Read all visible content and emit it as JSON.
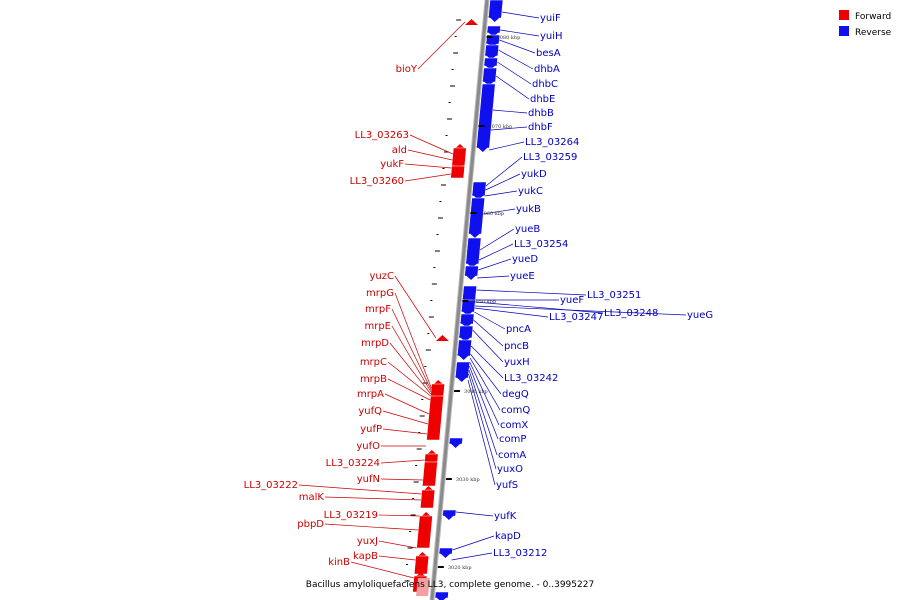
{
  "title": "Bacillus amyloliquefaciens LL3, complete genome. - 0..3995227",
  "legend": [
    {
      "label": "Forward",
      "color": "#ee0000"
    },
    {
      "label": "Reverse",
      "color": "#1010ee"
    }
  ],
  "colors": {
    "forward": "#ee0000",
    "reverse": "#1010ee",
    "forward_label": "#cc0000",
    "reverse_label": "#0000bb",
    "backbone": "#8a8a8a"
  },
  "coordinates": [
    "3080 kbp",
    "3070 kbp",
    "3060 kbp",
    "3050 kbp",
    "3040 kbp",
    "3030 kbp",
    "3020 kbp"
  ],
  "forward_genes": [
    "bioY",
    "LL3_03263",
    "ald",
    "yukF",
    "LL3_03260",
    "yuzC",
    "mrpG",
    "mrpF",
    "mrpE",
    "mrpD",
    "mrpC",
    "mrpB",
    "mrpA",
    "yufQ",
    "yufP",
    "yufO",
    "LL3_03224",
    "yufN",
    "LL3_03222",
    "malK",
    "LL3_03219",
    "pbpD",
    "yuxJ",
    "kapB",
    "kinB"
  ],
  "reverse_genes": [
    "yuiF",
    "yuiH",
    "besA",
    "dhbA",
    "dhbC",
    "dhbE",
    "dhbB",
    "dhbF",
    "LL3_03264",
    "LL3_03259",
    "yukD",
    "yukC",
    "yukB",
    "yueB",
    "LL3_03254",
    "yueD",
    "yueE",
    "LL3_03251",
    "yueF",
    "LL3_03248",
    "yueG",
    "LL3_03247",
    "pncA",
    "pncB",
    "yuxH",
    "LL3_03242",
    "degQ",
    "comQ",
    "comX",
    "comP",
    "comA",
    "yuxO",
    "yufS",
    "yufK",
    "kapD",
    "LL3_03212"
  ]
}
